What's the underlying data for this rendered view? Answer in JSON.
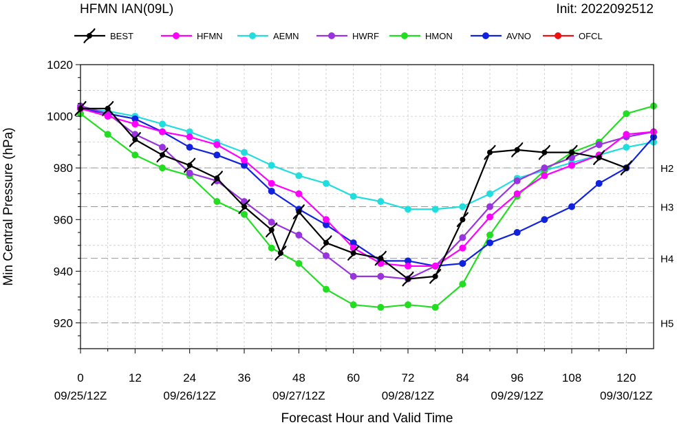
{
  "header": {
    "title": "HFMN IAN(09L)",
    "init": "Init: 2022092512"
  },
  "chart_data": {
    "type": "line",
    "xlabel": "Forecast Hour and Valid Time",
    "ylabel": "Min Central Pressure (hPa)",
    "xlim": [
      0,
      126
    ],
    "ylim": [
      910,
      1020
    ],
    "x_ticks": [
      0,
      12,
      24,
      36,
      48,
      60,
      72,
      84,
      96,
      108,
      120
    ],
    "x_tick_labels": [
      "0",
      "12",
      "24",
      "36",
      "48",
      "60",
      "72",
      "84",
      "96",
      "108",
      "120"
    ],
    "date_labels": [
      {
        "x": 0,
        "label": "09/25/12Z"
      },
      {
        "x": 24,
        "label": "09/26/12Z"
      },
      {
        "x": 48,
        "label": "09/27/12Z"
      },
      {
        "x": 72,
        "label": "09/28/12Z"
      },
      {
        "x": 96,
        "label": "09/29/12Z"
      },
      {
        "x": 120,
        "label": "09/30/12Z"
      }
    ],
    "y_ticks": [
      920,
      940,
      960,
      980,
      1000,
      1020
    ],
    "y_tick_labels": [
      "920",
      "940",
      "960",
      "980",
      "1000",
      "1020"
    ],
    "categories": [
      {
        "label": "H2",
        "value": 980
      },
      {
        "label": "H3",
        "value": 965
      },
      {
        "label": "H4",
        "value": 945
      },
      {
        "label": "H5",
        "value": 920
      }
    ],
    "legend_position": "top",
    "series": [
      {
        "name": "BEST",
        "color": "#000000",
        "marker": "hurricane-symbol",
        "x": [
          0,
          6,
          12,
          18,
          24,
          30,
          36,
          42,
          44,
          48,
          54,
          60,
          66,
          72,
          78,
          84,
          90,
          96,
          102,
          108,
          114,
          120
        ],
        "y": [
          1003,
          1003,
          991,
          985,
          981,
          976,
          965,
          956,
          947,
          963,
          951,
          947,
          945,
          937,
          938,
          960,
          986,
          987,
          986,
          986,
          984,
          980
        ]
      },
      {
        "name": "HFMN",
        "color": "#ff00ff",
        "marker": "circle",
        "x": [
          0,
          6,
          12,
          18,
          24,
          30,
          36,
          42,
          48,
          54,
          60,
          66,
          72,
          78,
          84,
          90,
          96,
          102,
          108,
          114,
          120,
          126
        ],
        "y": [
          1003,
          1000,
          997,
          994,
          992,
          989,
          983,
          974,
          970,
          960,
          949,
          943,
          942,
          942,
          949,
          961,
          970,
          977,
          981,
          985,
          993,
          994
        ]
      },
      {
        "name": "AEMN",
        "color": "#22dddd",
        "marker": "circle",
        "x": [
          0,
          6,
          12,
          18,
          24,
          30,
          36,
          42,
          48,
          54,
          60,
          66,
          72,
          78,
          84,
          90,
          96,
          102,
          108,
          114,
          120,
          126
        ],
        "y": [
          1003,
          1002,
          1000,
          997,
          994,
          990,
          986,
          981,
          977,
          974,
          969,
          967,
          964,
          964,
          965,
          970,
          976,
          979,
          982,
          985,
          988,
          990
        ]
      },
      {
        "name": "HWRF",
        "color": "#9933dd",
        "marker": "circle",
        "x": [
          0,
          6,
          12,
          18,
          24,
          30,
          36,
          42,
          48,
          54,
          60,
          66,
          72,
          78,
          84,
          90,
          96,
          102,
          108,
          114,
          120,
          126
        ],
        "y": [
          1004,
          1001,
          993,
          988,
          978,
          975,
          967,
          959,
          954,
          946,
          938,
          938,
          937,
          942,
          953,
          965,
          975,
          980,
          984,
          989,
          992,
          994
        ]
      },
      {
        "name": "HMON",
        "color": "#22dd22",
        "marker": "circle",
        "x": [
          0,
          6,
          12,
          18,
          24,
          30,
          36,
          42,
          48,
          54,
          60,
          66,
          72,
          78,
          84,
          90,
          96,
          102,
          108,
          114,
          120,
          126
        ],
        "y": [
          1001,
          993,
          985,
          980,
          977,
          967,
          962,
          949,
          943,
          933,
          927,
          926,
          927,
          926,
          935,
          954,
          969,
          979,
          986,
          990,
          1001,
          1004
        ]
      },
      {
        "name": "AVNO",
        "color": "#1122dd",
        "marker": "circle",
        "x": [
          0,
          6,
          12,
          18,
          24,
          30,
          36,
          42,
          48,
          54,
          60,
          66,
          72,
          78,
          84,
          90,
          96,
          102,
          108,
          114,
          120,
          126
        ],
        "y": [
          1003,
          1001,
          999,
          994,
          988,
          985,
          981,
          971,
          964,
          958,
          951,
          944,
          944,
          942,
          943,
          951,
          955,
          960,
          965,
          974,
          980,
          992
        ]
      },
      {
        "name": "OFCL",
        "color": "#ee1111",
        "marker": "circle",
        "x": [],
        "y": []
      }
    ]
  }
}
